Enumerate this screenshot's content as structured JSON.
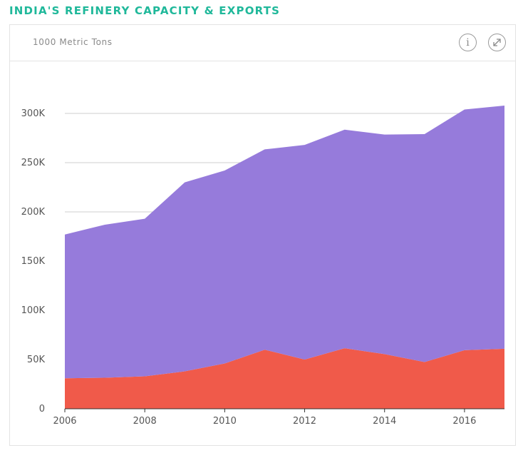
{
  "page": {
    "title": "INDIA'S REFINERY CAPACITY & EXPORTS",
    "title_color": "#1fb89a"
  },
  "card": {
    "units_label": "1000 Metric Tons",
    "info_icon": "info-icon",
    "expand_icon": "expand-icon"
  },
  "chart_data": {
    "type": "area",
    "stacked": true,
    "x": [
      2006,
      2007,
      2008,
      2009,
      2010,
      2011,
      2012,
      2013,
      2014,
      2015,
      2016,
      2017
    ],
    "series": [
      {
        "color": "#f05a4a",
        "values": [
          31000,
          31500,
          33000,
          38000,
          46000,
          60000,
          50000,
          61500,
          55500,
          47500,
          59500,
          61000
        ]
      },
      {
        "color": "#967bdb",
        "values": [
          146000,
          155500,
          160000,
          192000,
          196000,
          203500,
          218000,
          222000,
          223000,
          231500,
          244500,
          247000
        ]
      }
    ],
    "ylim": [
      0,
      300000
    ],
    "yticks": [
      "0",
      "50K",
      "100K",
      "150K",
      "200K",
      "250K",
      "300K"
    ],
    "ytick_values": [
      0,
      50000,
      100000,
      150000,
      200000,
      250000,
      300000
    ],
    "xticks": [
      "2006",
      "2008",
      "2010",
      "2012",
      "2014",
      "2016"
    ],
    "xtick_values": [
      2006,
      2008,
      2010,
      2012,
      2014,
      2016
    ],
    "xlim": [
      2006,
      2017
    ],
    "grid": "horizontal",
    "gridline_color": "#cfcfcf",
    "axis_color": "#333333"
  }
}
